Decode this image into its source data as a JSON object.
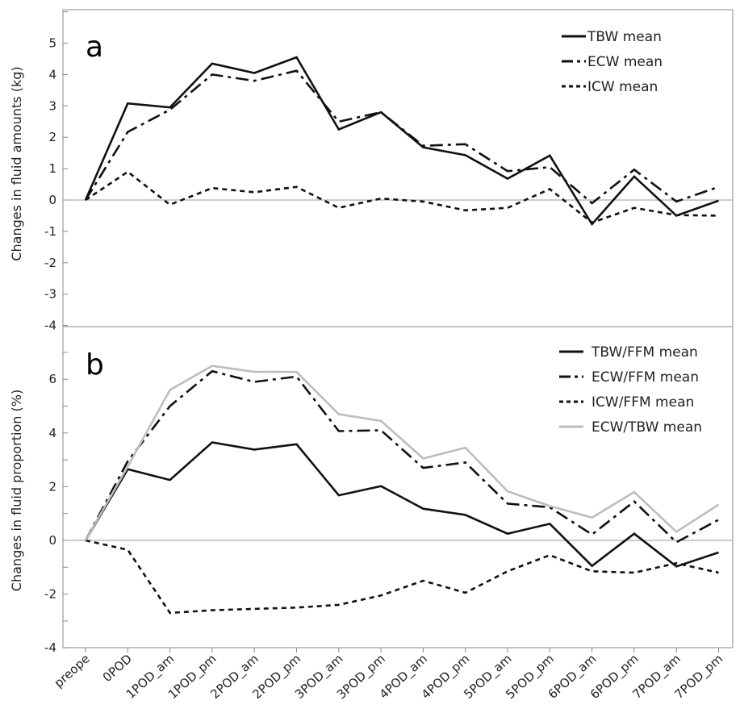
{
  "chart_data": [
    {
      "type": "line",
      "panel_label": "a",
      "title": "",
      "ylabel": "Changes in fluid amounts (kg)",
      "xlabel": "",
      "ylim": [
        -4,
        6
      ],
      "yticks": [
        -4,
        -3,
        -2,
        -1,
        0,
        1,
        2,
        3,
        4,
        5
      ],
      "grid": false,
      "legend_position": "top-right",
      "categories": [
        "preope",
        "0POD",
        "1POD_am",
        "1POD_pm",
        "2POD_am",
        "2POD_pm",
        "3POD_am",
        "3POD_pm",
        "4POD_am",
        "4POD_pm",
        "5POD_am",
        "5POD_pm",
        "6POD_am",
        "6POD_pm",
        "7POD_am",
        "7POD_pm"
      ],
      "series": [
        {
          "name": "TBW mean",
          "style": "solid",
          "color": "#111111",
          "values": [
            0,
            3.08,
            2.95,
            4.35,
            4.05,
            4.55,
            2.25,
            2.8,
            1.68,
            1.43,
            0.68,
            1.42,
            -0.77,
            0.75,
            -0.5,
            -0.02
          ]
        },
        {
          "name": "ECW mean",
          "style": "dashdot",
          "color": "#111111",
          "values": [
            0,
            2.17,
            2.88,
            4.0,
            3.8,
            4.12,
            2.5,
            2.8,
            1.73,
            1.78,
            0.92,
            1.05,
            -0.1,
            0.97,
            -0.05,
            0.42
          ]
        },
        {
          "name": "ICW mean",
          "style": "dotted",
          "color": "#111111",
          "values": [
            0,
            0.9,
            -0.15,
            0.38,
            0.25,
            0.42,
            -0.25,
            0.05,
            -0.05,
            -0.33,
            -0.25,
            0.35,
            -0.72,
            -0.25,
            -0.48,
            -0.5
          ]
        }
      ]
    },
    {
      "type": "line",
      "panel_label": "b",
      "title": "",
      "ylabel": "Changes in fluid proportion (%)",
      "xlabel": "",
      "ylim": [
        -4,
        7
      ],
      "yticks": [
        -4,
        -2,
        0,
        2,
        4,
        6
      ],
      "grid": false,
      "legend_position": "top-right",
      "categories": [
        "preope",
        "0POD",
        "1POD_am",
        "1POD_pm",
        "2POD_am",
        "2POD_pm",
        "3POD_am",
        "3POD_pm",
        "4POD_am",
        "4POD_pm",
        "5POD_am",
        "5POD_pm",
        "6POD_am",
        "6POD_pm",
        "7POD_am",
        "7POD_pm"
      ],
      "series": [
        {
          "name": "TBW/FFM mean",
          "style": "solid",
          "color": "#111111",
          "values": [
            0,
            2.65,
            2.25,
            3.65,
            3.38,
            3.58,
            1.68,
            2.02,
            1.18,
            0.95,
            0.25,
            0.62,
            -0.95,
            0.25,
            -0.97,
            -0.45
          ]
        },
        {
          "name": "ECW/FFM mean",
          "style": "dashdot",
          "color": "#111111",
          "values": [
            0,
            2.95,
            5.0,
            6.3,
            5.9,
            6.1,
            4.07,
            4.1,
            2.7,
            2.9,
            1.37,
            1.23,
            0.22,
            1.45,
            -0.07,
            0.77
          ]
        },
        {
          "name": "ICW/FFM mean",
          "style": "dotted",
          "color": "#111111",
          "values": [
            0,
            -0.35,
            -2.7,
            -2.6,
            -2.55,
            -2.5,
            -2.4,
            -2.05,
            -1.5,
            -1.95,
            -1.15,
            -0.55,
            -1.15,
            -1.2,
            -0.85,
            -1.2
          ]
        },
        {
          "name": "ECW/TBW mean",
          "style": "solid",
          "color": "#bdbdbd",
          "values": [
            0,
            2.75,
            5.6,
            6.5,
            6.28,
            6.27,
            4.7,
            4.45,
            3.05,
            3.45,
            1.83,
            1.28,
            0.85,
            1.8,
            0.32,
            1.33
          ]
        }
      ]
    }
  ]
}
